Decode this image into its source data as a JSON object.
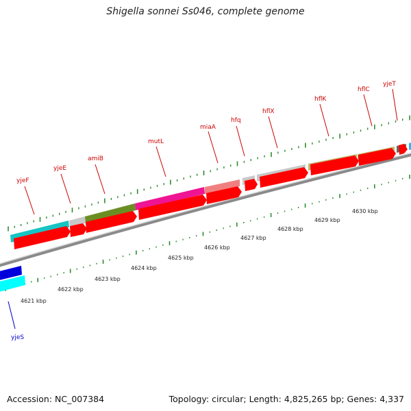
{
  "title": "Shigella sonnei Ss046, complete genome",
  "footer": {
    "accession": "Accession: NC_007384",
    "summary": "Topology: circular; Length: 4,825,265 bp; Genes: 4,337"
  },
  "colors": {
    "cds": "#ff0000",
    "backbone": "#8a8a8a",
    "tick": "#2e8b2e",
    "label_red": "#cc0000",
    "label_blue": "#0000cc",
    "label_text": "#222222"
  },
  "scale_ticks": [
    {
      "label": "4621 kbp",
      "kbp": 4621
    },
    {
      "label": "4622 kbp",
      "kbp": 4622
    },
    {
      "label": "4623 kbp",
      "kbp": 4623
    },
    {
      "label": "4624 kbp",
      "kbp": 4624
    },
    {
      "label": "4625 kbp",
      "kbp": 4625
    },
    {
      "label": "4626 kbp",
      "kbp": 4626
    },
    {
      "label": "4627 kbp",
      "kbp": 4627
    },
    {
      "label": "4628 kbp",
      "kbp": 4628
    },
    {
      "label": "4629 kbp",
      "kbp": 4629
    },
    {
      "label": "4630 kbp",
      "kbp": 4630
    }
  ],
  "genes": [
    {
      "name": "yjeS",
      "color": "#0000cc"
    },
    {
      "name": "yjeF",
      "color": "#cc0000"
    },
    {
      "name": "yjeE",
      "color": "#cc0000"
    },
    {
      "name": "amiB",
      "color": "#cc0000"
    },
    {
      "name": "mutL",
      "color": "#cc0000"
    },
    {
      "name": "miaA",
      "color": "#cc0000"
    },
    {
      "name": "hfq",
      "color": "#cc0000"
    },
    {
      "name": "hflX",
      "color": "#cc0000"
    },
    {
      "name": "hflK",
      "color": "#cc0000"
    },
    {
      "name": "hflC",
      "color": "#cc0000"
    },
    {
      "name": "yjeT",
      "color": "#cc0000"
    }
  ]
}
